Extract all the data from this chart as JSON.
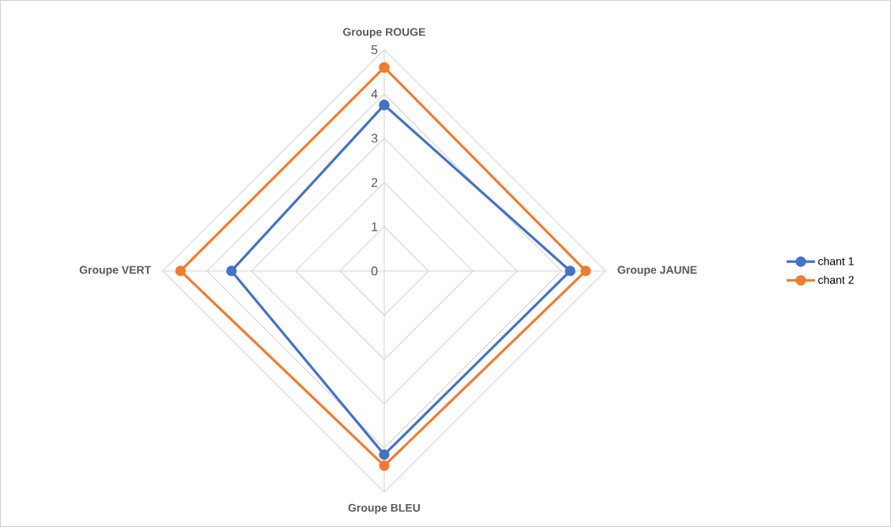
{
  "chart_data": {
    "type": "radar",
    "categories": [
      "Groupe ROUGE",
      "Groupe JAUNE",
      "Groupe BLEU",
      "Groupe VERT"
    ],
    "series": [
      {
        "name": "chant 1",
        "color": "#4472c4",
        "values": [
          3.75,
          4.2,
          4.15,
          3.45
        ]
      },
      {
        "name": "chant 2",
        "color": "#ed7d31",
        "values": [
          4.6,
          4.55,
          4.4,
          4.6
        ]
      }
    ],
    "ylim": [
      0,
      5
    ],
    "yticks": [
      0,
      1,
      2,
      3,
      4,
      5
    ],
    "grid": true,
    "legend": "right",
    "marker": "circle",
    "line_style": "solid"
  }
}
